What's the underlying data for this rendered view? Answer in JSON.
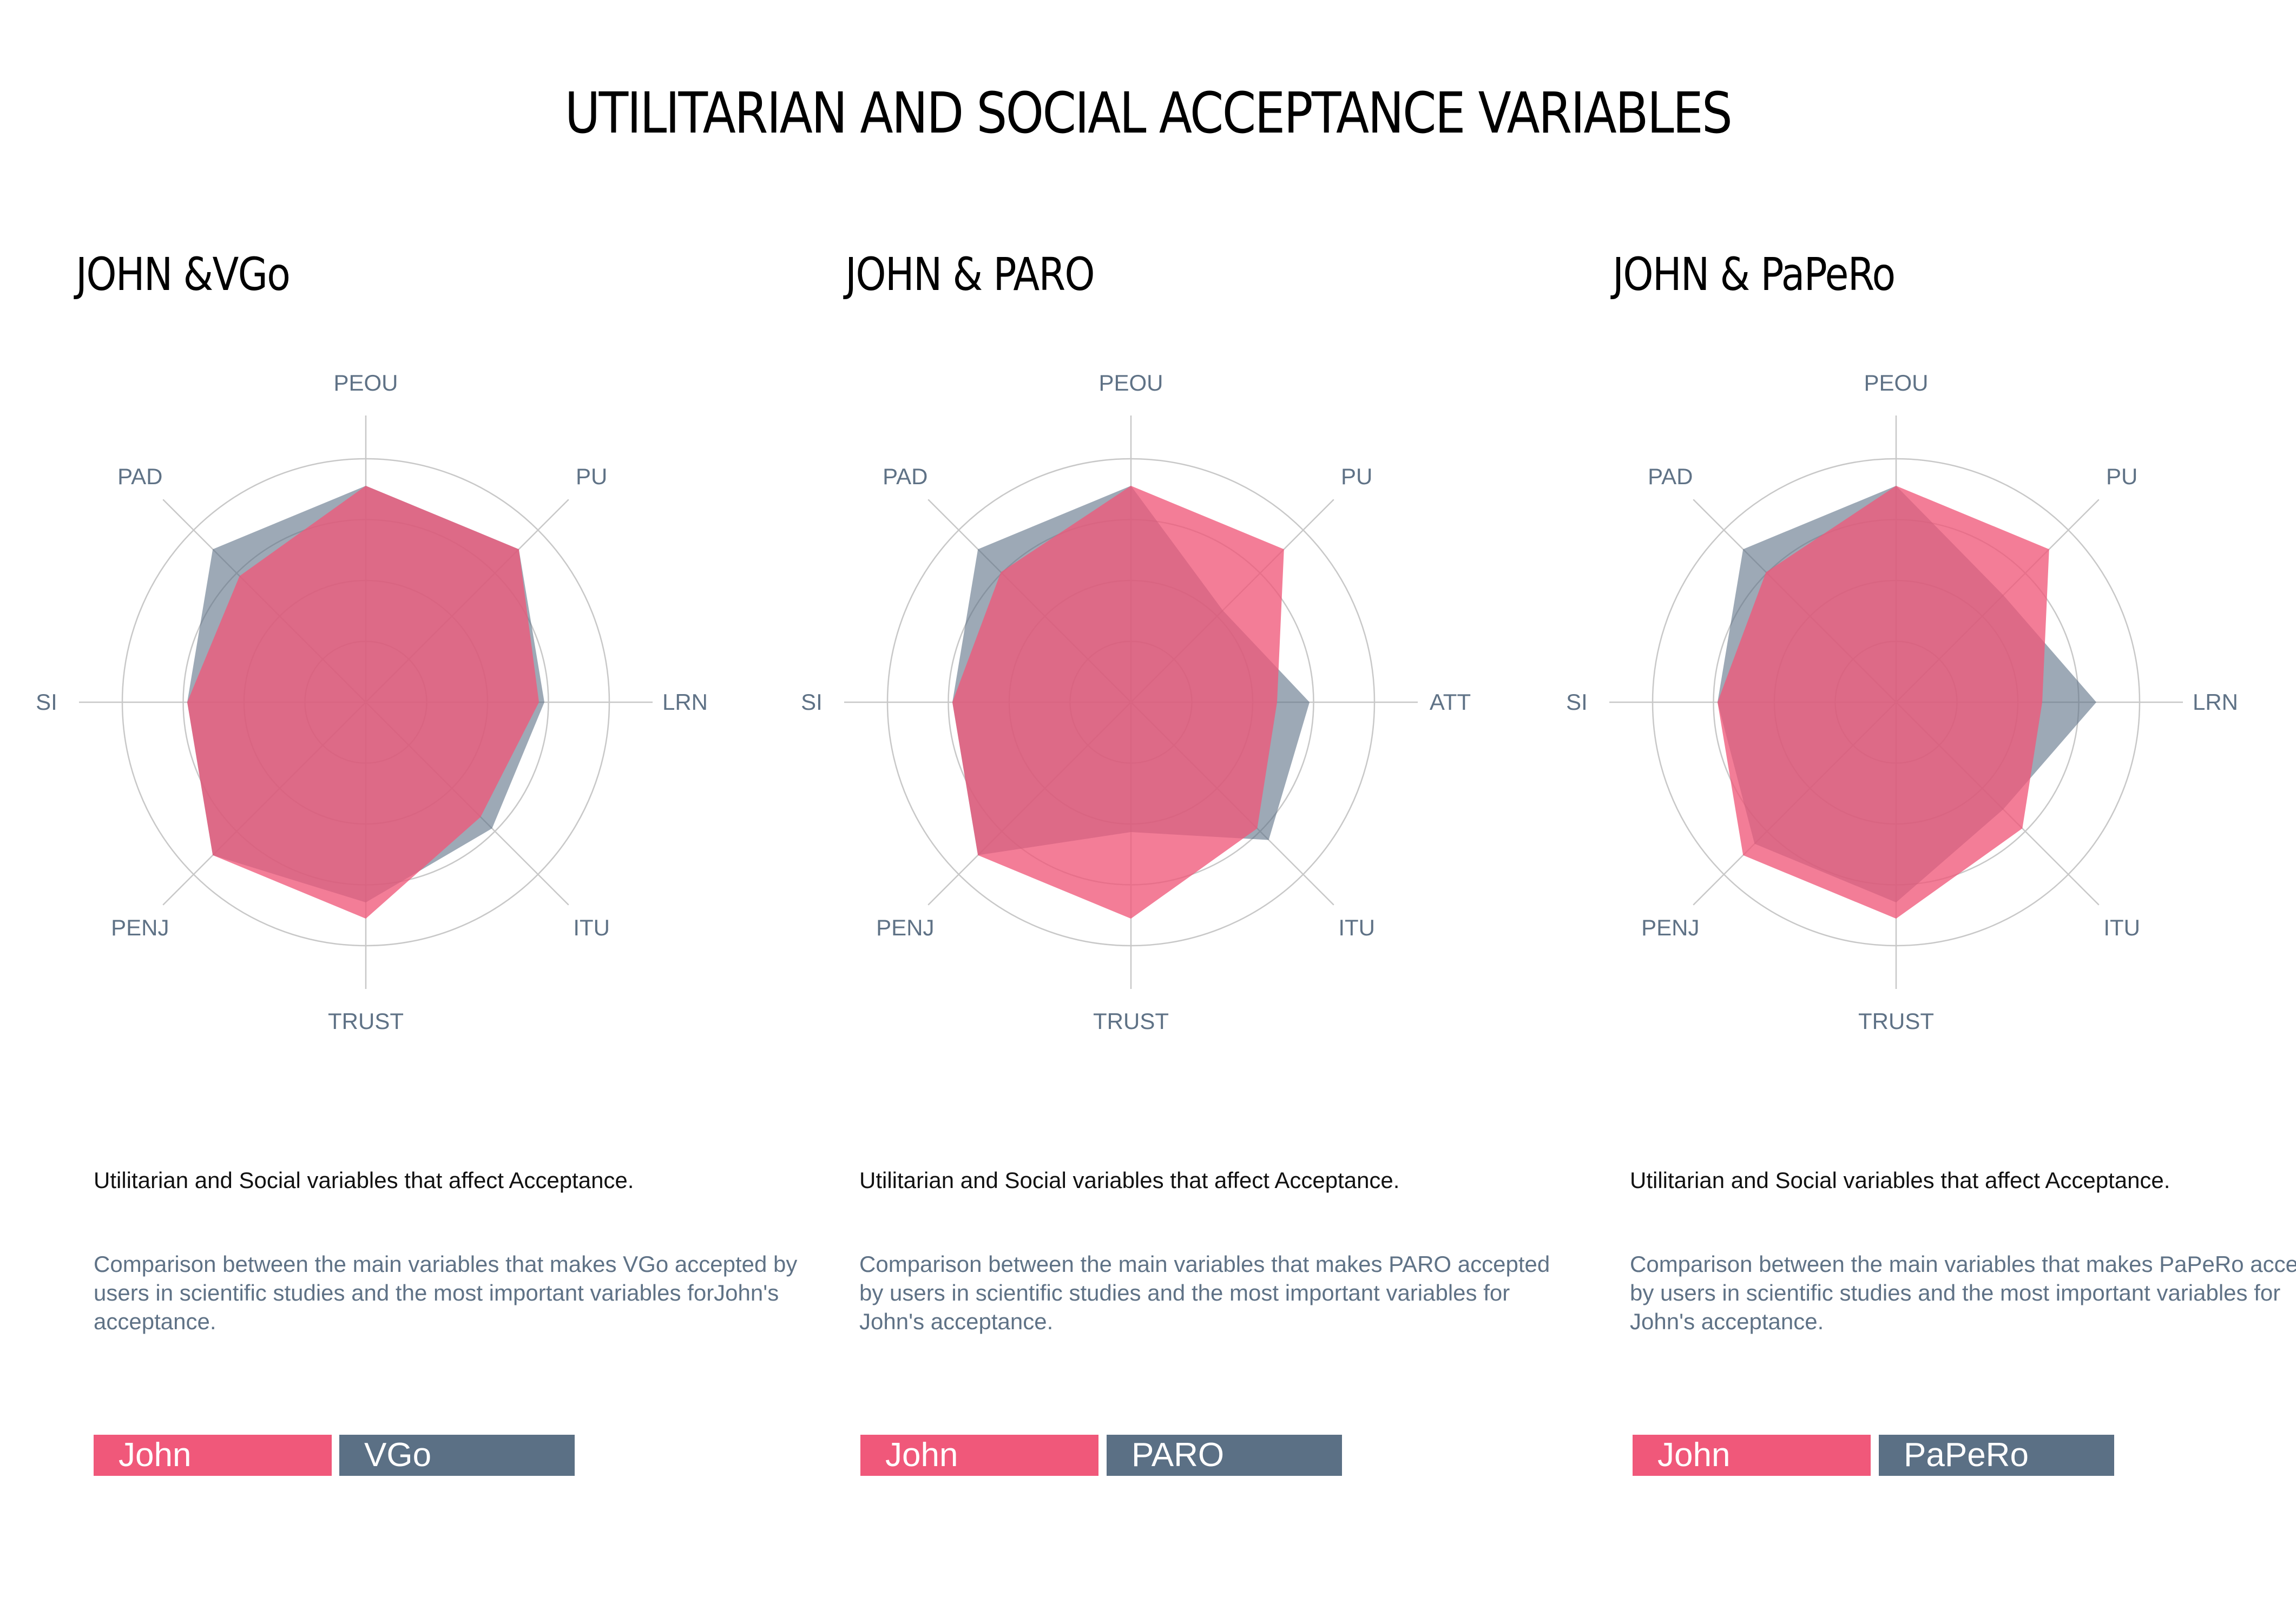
{
  "title": "UTILITARIAN AND SOCIAL ACCEPTANCE VARIABLES",
  "colors": {
    "john": "#f0587a",
    "robot": "#5b7085",
    "grid": "#c8c8c8",
    "label": "#5f7286"
  },
  "panels": [
    {
      "title": "JOHN &VGo",
      "desc_heading": "Utilitarian and Social variables that affect Acceptance.",
      "desc_body": "Comparison between the main variables that makes VGo accepted by users in scientific studies and the most important variables forJohn's acceptance.",
      "legend": {
        "john": "John",
        "robot": "VGo"
      }
    },
    {
      "title": "JOHN & PARO",
      "desc_heading": "Utilitarian and Social variables that affect Acceptance.",
      "desc_body": "Comparison between the main variables that makes PARO accepted by users in scientific studies and the most important variables for John's acceptance.",
      "legend": {
        "john": "John",
        "robot": "PARO"
      }
    },
    {
      "title": "JOHN & PaPeRo",
      "desc_heading": "Utilitarian and Social variables that affect Acceptance.",
      "desc_body": "Comparison between the main variables that makes PaPeRo accepted by users in scientific studies and the most important variables for John's acceptance.",
      "legend": {
        "john": "John",
        "robot": "PaPeRo"
      }
    }
  ],
  "chart_data": [
    {
      "type": "radar",
      "title": "JOHN &VGo",
      "categories": [
        "PEOU",
        "PU",
        "LRN",
        "ITU",
        "TRUST",
        "PENJ",
        "SI",
        "PAD"
      ],
      "rmax": 5,
      "grid_rings": 4,
      "series": [
        {
          "name": "VGo",
          "color": "#5b7085",
          "values": [
            4,
            4,
            3.3,
            3.3,
            3.7,
            4,
            3.3,
            4
          ]
        },
        {
          "name": "John",
          "color": "#f0587a",
          "values": [
            4,
            4,
            3.2,
            3.0,
            4.0,
            4.0,
            3.3,
            3.3
          ]
        }
      ]
    },
    {
      "type": "radar",
      "title": "JOHN & PARO",
      "categories": [
        "PEOU",
        "PU",
        "ATT",
        "ITU",
        "TRUST",
        "PENJ",
        "SI",
        "PAD"
      ],
      "rmax": 5,
      "grid_rings": 4,
      "series": [
        {
          "name": "PARO",
          "color": "#5b7085",
          "values": [
            4,
            2.4,
            3.3,
            3.6,
            2.4,
            4,
            3.3,
            4
          ]
        },
        {
          "name": "John",
          "color": "#f0587a",
          "values": [
            4,
            4,
            2.7,
            3.3,
            4,
            4,
            3.3,
            3.4
          ]
        }
      ]
    },
    {
      "type": "radar",
      "title": "JOHN & PaPeRo",
      "categories": [
        "PEOU",
        "PU",
        "LRN",
        "ITU",
        "TRUST",
        "PENJ",
        "SI",
        "PAD"
      ],
      "rmax": 5,
      "grid_rings": 4,
      "series": [
        {
          "name": "PaPeRo",
          "color": "#5b7085",
          "values": [
            4,
            2.8,
            3.7,
            2.8,
            3.7,
            3.7,
            3.3,
            4
          ]
        },
        {
          "name": "John",
          "color": "#f0587a",
          "values": [
            4,
            4,
            2.7,
            3.3,
            4,
            4,
            3.3,
            3.4
          ]
        }
      ]
    }
  ]
}
